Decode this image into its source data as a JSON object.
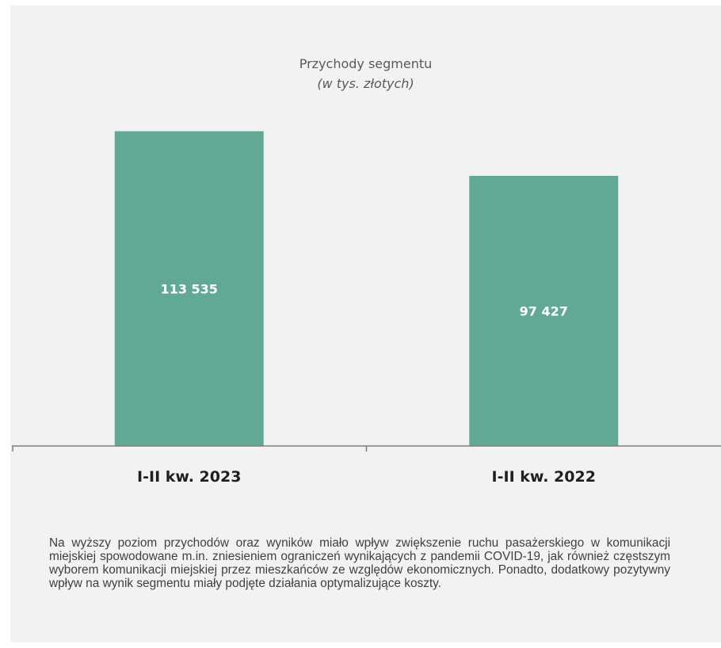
{
  "chart_data": {
    "type": "bar",
    "title": "Przychody segmentu",
    "subtitle": "(w tys. złotych)",
    "categories": [
      "I-II kw. 2023",
      "I-II kw. 2022"
    ],
    "values": [
      113535,
      97427
    ],
    "value_labels": [
      "113 535",
      "97 427"
    ],
    "ylim": [
      0,
      120000
    ],
    "grid": false,
    "legend": "none",
    "bar_color": "#61a994",
    "axis_color": "#7f7f7f",
    "value_label_color": "#ffffff",
    "category_label_color": "#1f1f1f"
  },
  "note": {
    "text": "Na wyższy poziom przychodów oraz wyników miało wpływ zwiększenie ruchu pasażerskiego w komunikacji miejskiej spowodowane m.in. zniesieniem ograniczeń wynikających z pandemii COVID-19, jak również częstszym wyborem komunikacji miejskiej przez mieszkańców ze względów ekonomicznych. Ponadto, dodatkowy pozytywny wpływ na wynik segmentu miały podjęte działania optymalizujące koszty."
  }
}
